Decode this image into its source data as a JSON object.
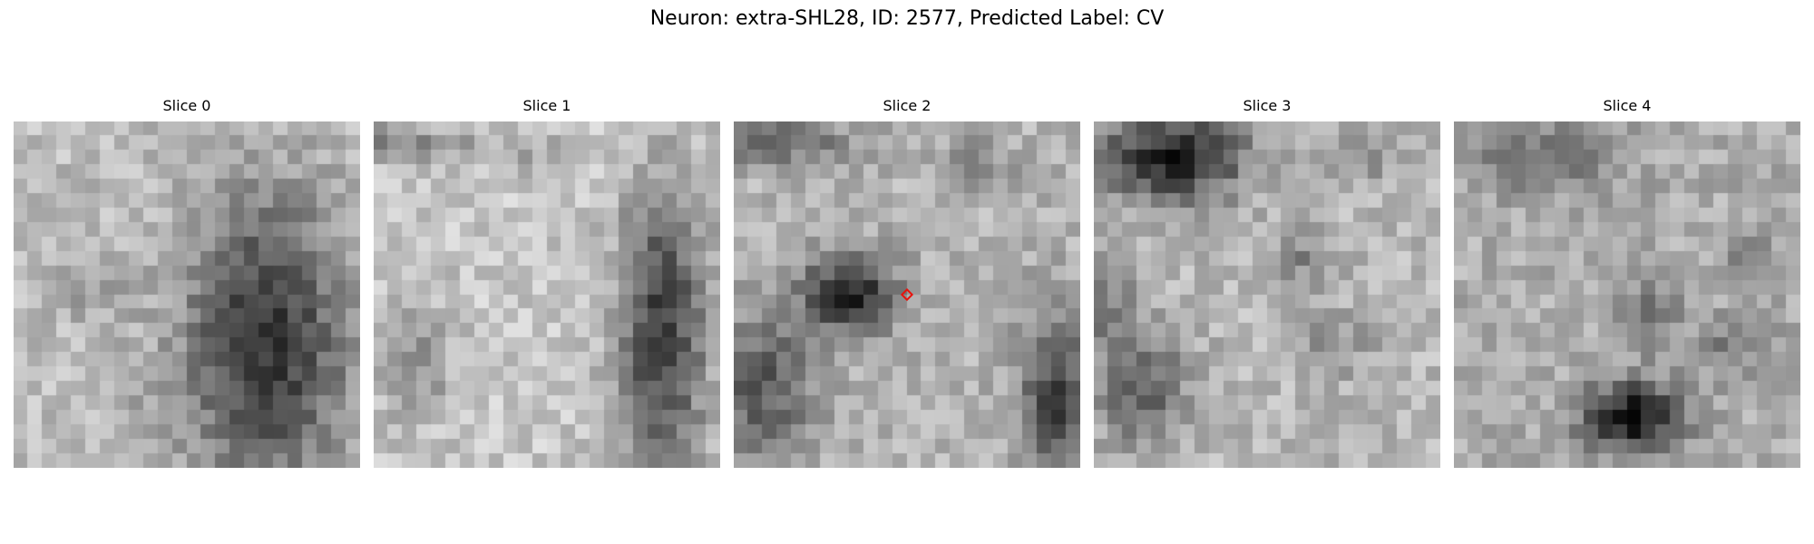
{
  "figure": {
    "title": "Neuron: extra-SHL28, ID: 2577, Predicted Label: CV"
  },
  "slices": [
    {
      "title": "Slice 0",
      "has_marker": false
    },
    {
      "title": "Slice 1",
      "has_marker": false
    },
    {
      "title": "Slice 2",
      "has_marker": true,
      "marker_color": "#e8120c"
    },
    {
      "title": "Slice 3",
      "has_marker": false
    },
    {
      "title": "Slice 4",
      "has_marker": false
    }
  ],
  "colors": {
    "background": "#ffffff",
    "marker": "#e8120c",
    "colormap": "grayscale"
  }
}
